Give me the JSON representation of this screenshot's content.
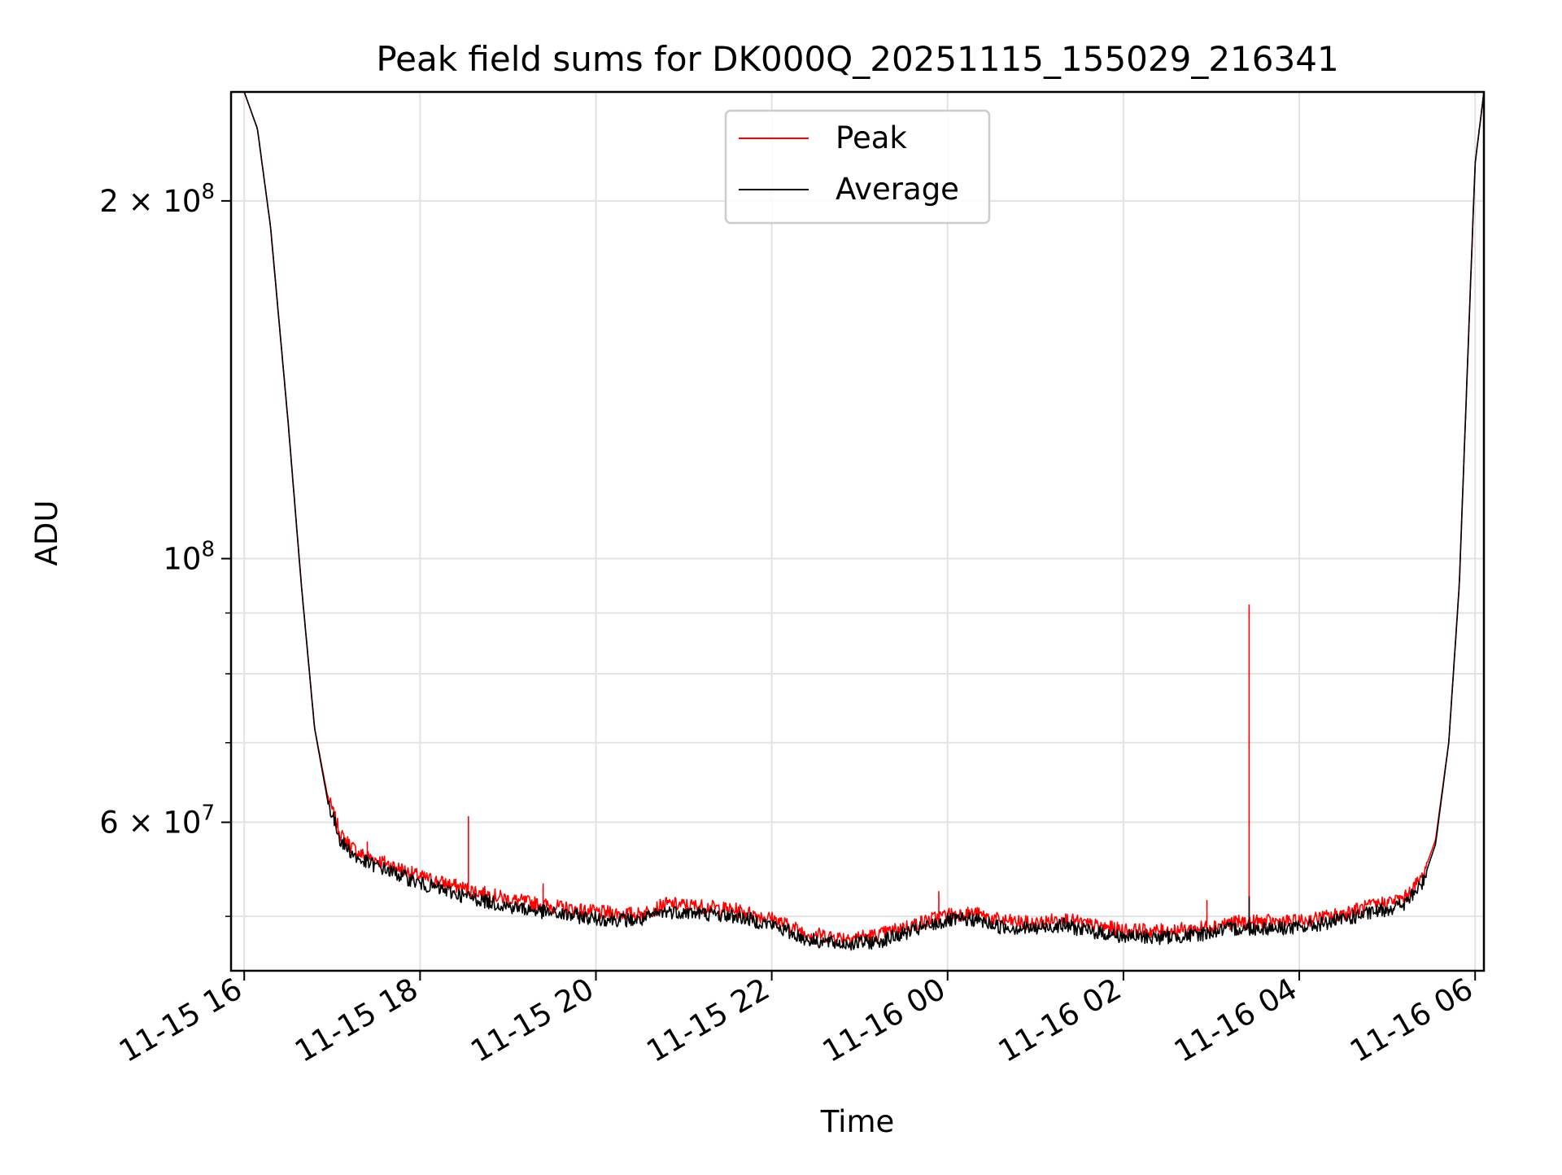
{
  "chart_data": {
    "type": "line",
    "title": "Peak field sums for DK000Q_20251115_155029_216341",
    "xlabel": "Time",
    "ylabel": "ADU",
    "yscale": "log",
    "ylim": [
      45000000,
      247000000
    ],
    "xlim_hours": [
      15.85,
      30.1
    ],
    "grid": true,
    "legend_position": "top-center",
    "x_ticks": [
      {
        "hour": 16,
        "label": "11-15 16"
      },
      {
        "hour": 18,
        "label": "11-15 18"
      },
      {
        "hour": 20,
        "label": "11-15 20"
      },
      {
        "hour": 22,
        "label": "11-15 22"
      },
      {
        "hour": 24,
        "label": "11-16 00"
      },
      {
        "hour": 26,
        "label": "11-16 02"
      },
      {
        "hour": 28,
        "label": "11-16 04"
      },
      {
        "hour": 30,
        "label": "11-16 06"
      }
    ],
    "y_major_ticks": [
      {
        "value": 100000000,
        "base": "10",
        "exp": "8",
        "mantissa": ""
      },
      {
        "value": 200000000,
        "base": "10",
        "exp": "8",
        "mantissa": "2"
      },
      {
        "value": 60000000,
        "base": "10",
        "exp": "7",
        "mantissa": "6"
      }
    ],
    "y_minor_ticks": [
      50000000,
      70000000,
      80000000,
      90000000
    ],
    "series": [
      {
        "name": "Peak",
        "color": "#ff0000",
        "points": [
          [
            15.85,
            247000000
          ],
          [
            16.0,
            247000000
          ],
          [
            16.15,
            230000000
          ],
          [
            16.3,
            190000000
          ],
          [
            16.5,
            130000000
          ],
          [
            16.65,
            95000000
          ],
          [
            16.8,
            72000000
          ],
          [
            16.95,
            63000000
          ],
          [
            17.1,
            58500000
          ],
          [
            17.3,
            56500000
          ],
          [
            17.6,
            55500000
          ],
          [
            18.0,
            54000000
          ],
          [
            18.5,
            52800000
          ],
          [
            19.0,
            51700000
          ],
          [
            19.5,
            51000000
          ],
          [
            20.0,
            50400000
          ],
          [
            20.5,
            50200000
          ],
          [
            20.8,
            51200000
          ],
          [
            21.2,
            51000000
          ],
          [
            21.6,
            50600000
          ],
          [
            22.0,
            49800000
          ],
          [
            22.4,
            48400000
          ],
          [
            22.8,
            48000000
          ],
          [
            23.2,
            48200000
          ],
          [
            23.6,
            49200000
          ],
          [
            24.0,
            50200000
          ],
          [
            24.3,
            50300000
          ],
          [
            24.6,
            49600000
          ],
          [
            25.0,
            49300000
          ],
          [
            25.3,
            49800000
          ],
          [
            25.6,
            49200000
          ],
          [
            26.0,
            48700000
          ],
          [
            26.4,
            48600000
          ],
          [
            26.8,
            48800000
          ],
          [
            27.2,
            49400000
          ],
          [
            27.6,
            49500000
          ],
          [
            28.0,
            49500000
          ],
          [
            28.4,
            50100000
          ],
          [
            28.8,
            51000000
          ],
          [
            29.2,
            51800000
          ],
          [
            29.4,
            54000000
          ],
          [
            29.55,
            58000000
          ],
          [
            29.7,
            70000000
          ],
          [
            29.82,
            95000000
          ],
          [
            29.92,
            150000000
          ],
          [
            30.0,
            215000000
          ],
          [
            30.1,
            247000000
          ]
        ],
        "spikes": [
          {
            "hour": 17.4,
            "value": 57800000
          },
          {
            "hour": 18.55,
            "value": 60700000
          },
          {
            "hour": 19.4,
            "value": 53300000
          },
          {
            "hour": 23.9,
            "value": 52500000
          },
          {
            "hour": 26.95,
            "value": 51600000
          },
          {
            "hour": 27.43,
            "value": 91500000
          }
        ]
      },
      {
        "name": "Average",
        "color": "#000000",
        "points": [
          [
            15.85,
            247000000
          ],
          [
            16.0,
            247000000
          ],
          [
            16.15,
            230000000
          ],
          [
            16.3,
            190000000
          ],
          [
            16.5,
            130000000
          ],
          [
            16.65,
            95000000
          ],
          [
            16.8,
            72000000
          ],
          [
            16.95,
            62500000
          ],
          [
            17.1,
            57800000
          ],
          [
            17.3,
            55800000
          ],
          [
            17.6,
            54800000
          ],
          [
            18.0,
            53300000
          ],
          [
            18.5,
            52000000
          ],
          [
            19.0,
            51000000
          ],
          [
            19.5,
            50300000
          ],
          [
            20.0,
            49800000
          ],
          [
            20.5,
            49600000
          ],
          [
            20.8,
            50500000
          ],
          [
            21.2,
            50300000
          ],
          [
            21.6,
            50000000
          ],
          [
            22.0,
            49200000
          ],
          [
            22.4,
            47800000
          ],
          [
            22.8,
            47400000
          ],
          [
            23.2,
            47600000
          ],
          [
            23.6,
            48600000
          ],
          [
            24.0,
            49600000
          ],
          [
            24.3,
            49700000
          ],
          [
            24.6,
            49000000
          ],
          [
            25.0,
            48800000
          ],
          [
            25.3,
            49200000
          ],
          [
            25.6,
            48600000
          ],
          [
            26.0,
            48100000
          ],
          [
            26.4,
            48000000
          ],
          [
            26.8,
            48200000
          ],
          [
            27.2,
            48800000
          ],
          [
            27.6,
            48900000
          ],
          [
            28.0,
            48900000
          ],
          [
            28.4,
            49500000
          ],
          [
            28.8,
            50300000
          ],
          [
            29.2,
            51200000
          ],
          [
            29.4,
            53300000
          ],
          [
            29.55,
            57500000
          ],
          [
            29.7,
            70000000
          ],
          [
            29.82,
            95000000
          ],
          [
            29.92,
            150000000
          ],
          [
            30.0,
            215000000
          ],
          [
            30.1,
            247000000
          ]
        ],
        "spikes": [
          {
            "hour": 27.43,
            "value": 52000000
          }
        ]
      }
    ]
  }
}
